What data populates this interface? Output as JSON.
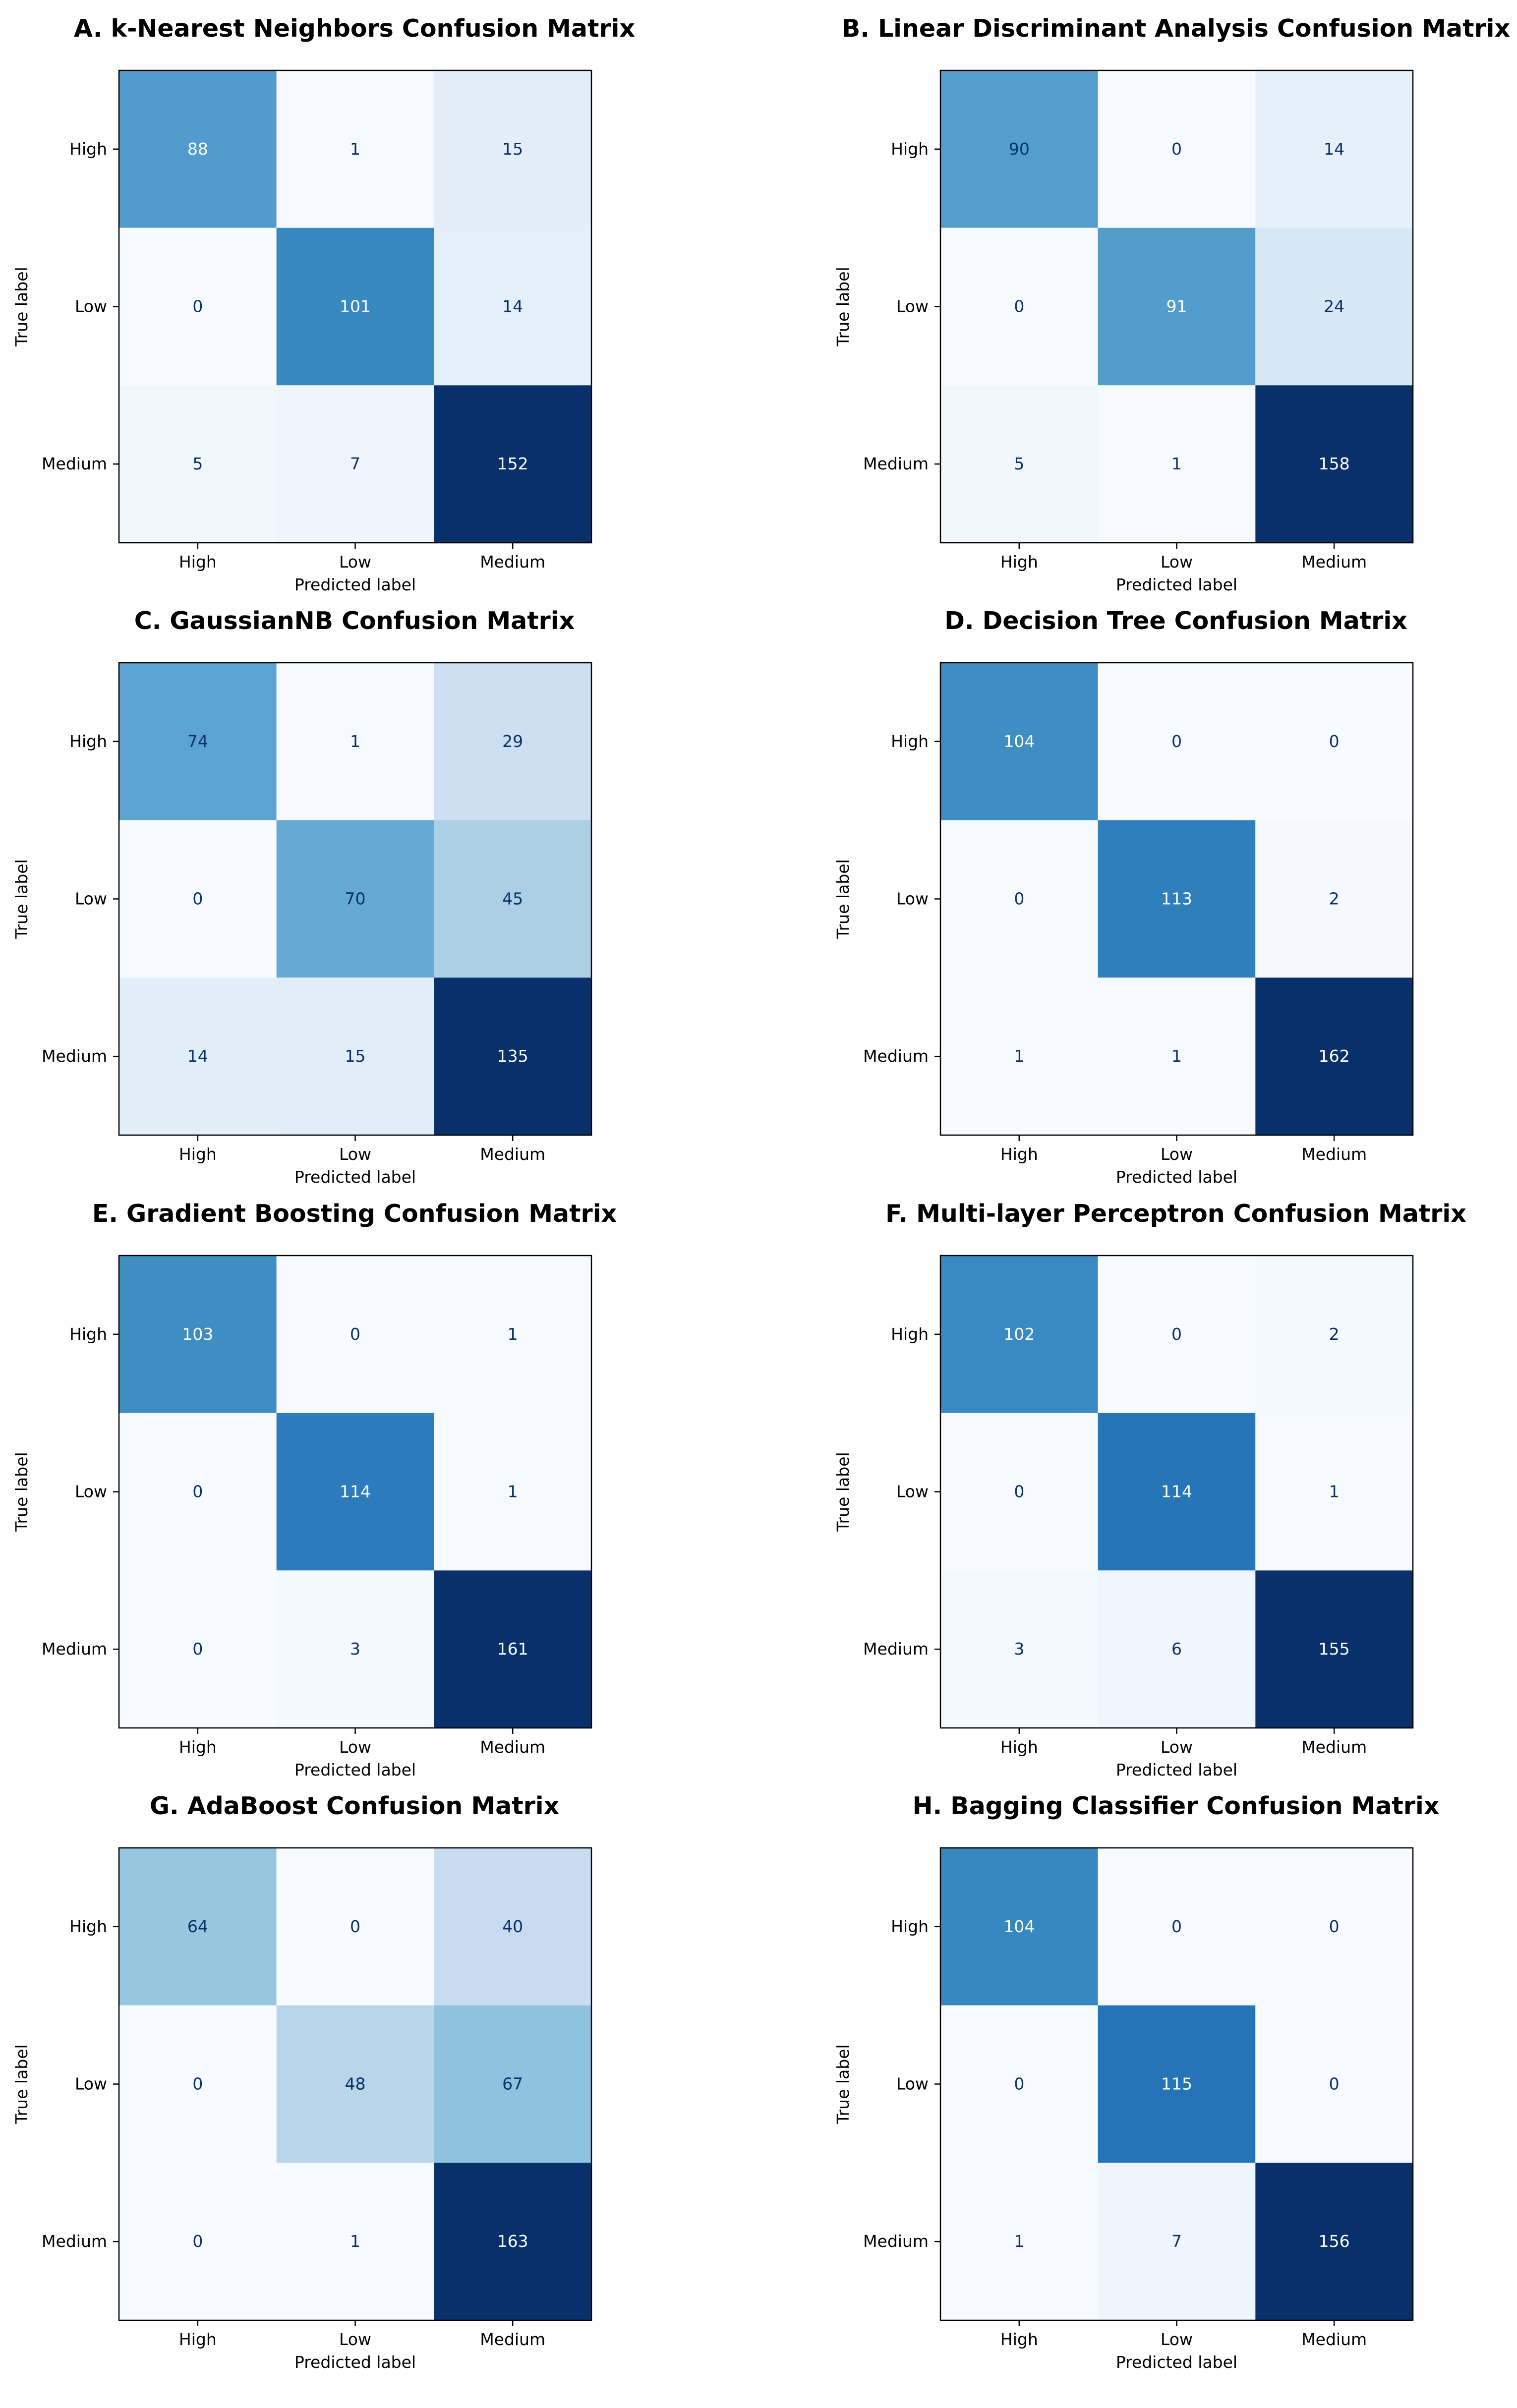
{
  "chart_data": [
    {
      "type": "heatmap",
      "title": "A. k-Nearest Neighbors Confusion Matrix",
      "xlabel": "Predicted label",
      "ylabel": "True label",
      "x_categories": [
        "High",
        "Low",
        "Medium"
      ],
      "y_categories": [
        "High",
        "Low",
        "Medium"
      ],
      "matrix": [
        [
          88,
          1,
          15
        ],
        [
          0,
          101,
          14
        ],
        [
          5,
          7,
          152
        ]
      ],
      "colormap": "Blues"
    },
    {
      "type": "heatmap",
      "title": "B. Linear Discriminant Analysis Confusion Matrix",
      "xlabel": "Predicted label",
      "ylabel": "True label",
      "x_categories": [
        "High",
        "Low",
        "Medium"
      ],
      "y_categories": [
        "High",
        "Low",
        "Medium"
      ],
      "matrix": [
        [
          90,
          0,
          14
        ],
        [
          0,
          91,
          24
        ],
        [
          5,
          1,
          158
        ]
      ],
      "colormap": "Blues"
    },
    {
      "type": "heatmap",
      "title": "C. GaussianNB Confusion Matrix",
      "xlabel": "Predicted label",
      "ylabel": "True label",
      "x_categories": [
        "High",
        "Low",
        "Medium"
      ],
      "y_categories": [
        "High",
        "Low",
        "Medium"
      ],
      "matrix": [
        [
          74,
          1,
          29
        ],
        [
          0,
          70,
          45
        ],
        [
          14,
          15,
          135
        ]
      ],
      "colormap": "Blues"
    },
    {
      "type": "heatmap",
      "title": "D. Decision Tree Confusion Matrix",
      "xlabel": "Predicted label",
      "ylabel": "True label",
      "x_categories": [
        "High",
        "Low",
        "Medium"
      ],
      "y_categories": [
        "High",
        "Low",
        "Medium"
      ],
      "matrix": [
        [
          104,
          0,
          0
        ],
        [
          0,
          113,
          2
        ],
        [
          1,
          1,
          162
        ]
      ],
      "colormap": "Blues"
    },
    {
      "type": "heatmap",
      "title": "E. Gradient Boosting Confusion Matrix",
      "xlabel": "Predicted label",
      "ylabel": "True label",
      "x_categories": [
        "High",
        "Low",
        "Medium"
      ],
      "y_categories": [
        "High",
        "Low",
        "Medium"
      ],
      "matrix": [
        [
          103,
          0,
          1
        ],
        [
          0,
          114,
          1
        ],
        [
          0,
          3,
          161
        ]
      ],
      "colormap": "Blues"
    },
    {
      "type": "heatmap",
      "title": "F. Multi-layer Perceptron Confusion Matrix",
      "xlabel": "Predicted label",
      "ylabel": "True label",
      "x_categories": [
        "High",
        "Low",
        "Medium"
      ],
      "y_categories": [
        "High",
        "Low",
        "Medium"
      ],
      "matrix": [
        [
          102,
          0,
          2
        ],
        [
          0,
          114,
          1
        ],
        [
          3,
          6,
          155
        ]
      ],
      "colormap": "Blues"
    },
    {
      "type": "heatmap",
      "title": "G. AdaBoost Confusion Matrix",
      "xlabel": "Predicted label",
      "ylabel": "True label",
      "x_categories": [
        "High",
        "Low",
        "Medium"
      ],
      "y_categories": [
        "High",
        "Low",
        "Medium"
      ],
      "matrix": [
        [
          64,
          0,
          40
        ],
        [
          0,
          48,
          67
        ],
        [
          0,
          1,
          163
        ]
      ],
      "colormap": "Blues"
    },
    {
      "type": "heatmap",
      "title": "H. Bagging Classifier Confusion Matrix",
      "xlabel": "Predicted label",
      "ylabel": "True label",
      "x_categories": [
        "High",
        "Low",
        "Medium"
      ],
      "y_categories": [
        "High",
        "Low",
        "Medium"
      ],
      "matrix": [
        [
          104,
          0,
          0
        ],
        [
          0,
          115,
          0
        ],
        [
          1,
          7,
          156
        ]
      ],
      "colormap": "Blues"
    }
  ]
}
